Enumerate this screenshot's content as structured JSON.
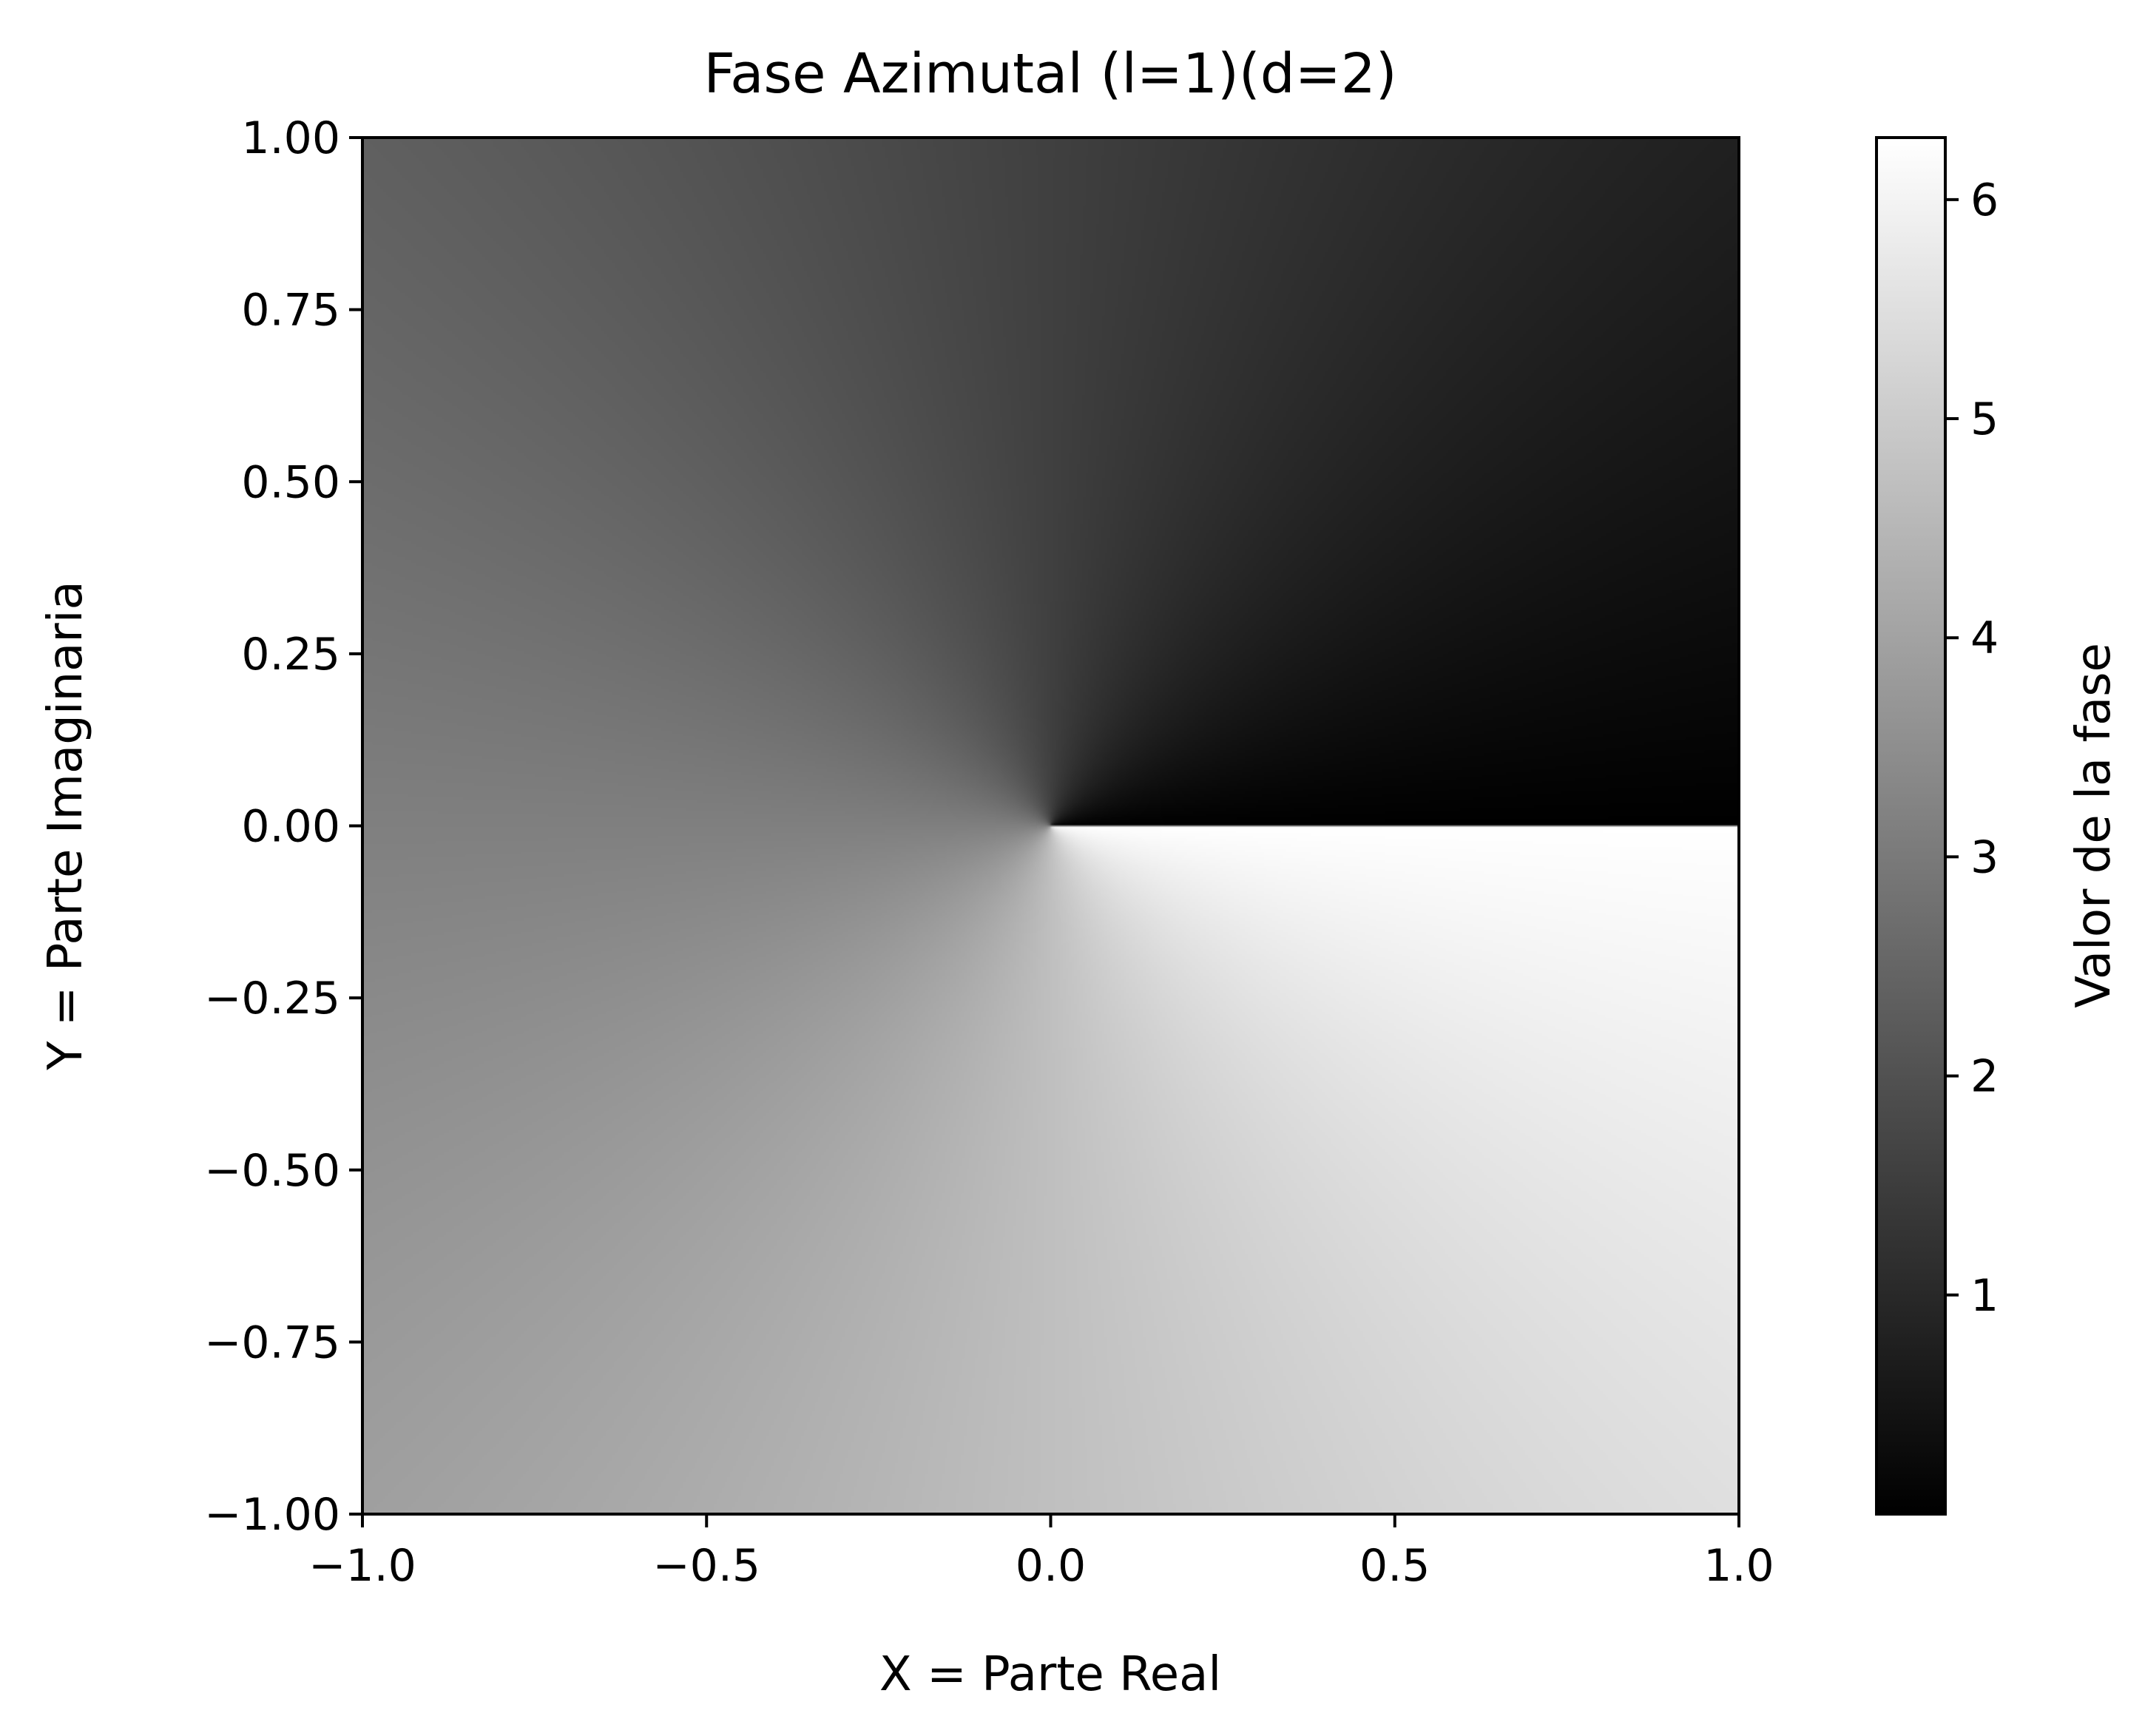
{
  "chart_data": {
    "type": "heatmap",
    "title": "Fase Azimutal (l=1)(d=2)",
    "xlabel": "X = Parte Real",
    "ylabel": "Y = Parte Imaginaria",
    "xlim": [
      -1.0,
      1.0
    ],
    "ylim": [
      -1.0,
      1.0
    ],
    "x_ticks": [
      -1.0,
      -0.5,
      0.0,
      0.5,
      1.0
    ],
    "x_tick_labels": [
      "−1.0",
      "−0.5",
      "0.0",
      "0.5",
      "1.0"
    ],
    "y_ticks": [
      1.0,
      0.75,
      0.5,
      0.25,
      0.0,
      -0.25,
      -0.5,
      -0.75,
      -1.0
    ],
    "y_tick_labels": [
      "1.00",
      "0.75",
      "0.50",
      "0.25",
      "0.00",
      "−0.25",
      "−0.50",
      "−0.75",
      "−1.00"
    ],
    "field": "phase = arg(X + iY) mod 2π",
    "topological_charge": 1,
    "colormap": "gray",
    "colormap_colors": [
      "#000000",
      "#ffffff"
    ],
    "colorbar": {
      "label": "Valor de la fase",
      "range": [
        0.0,
        6.283
      ],
      "ticks": [
        1,
        2,
        3,
        4,
        5,
        6
      ],
      "tick_labels": [
        "1",
        "2",
        "3",
        "4",
        "5",
        "6"
      ],
      "placement": "right"
    },
    "grid": false
  }
}
